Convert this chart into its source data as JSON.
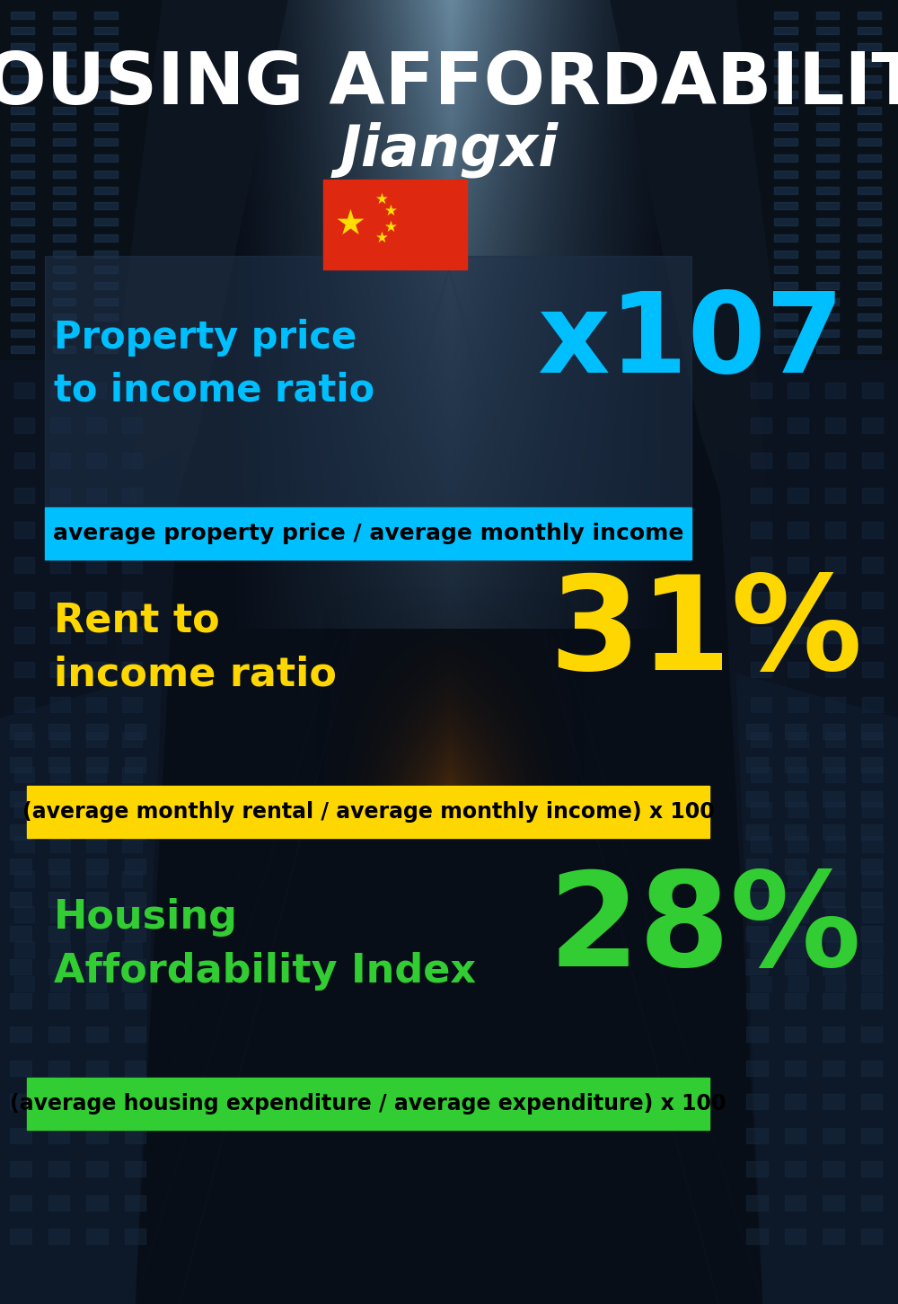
{
  "title_main": "HOUSING AFFORDABILITY",
  "title_sub": "Jiangxi",
  "section1_label": "Property price\nto income ratio",
  "section1_value": "x107",
  "section1_label_color": "#00BFFF",
  "section1_value_color": "#00BFFF",
  "section1_banner": "average property price / average monthly income",
  "section1_banner_bg": "#00BFFF",
  "section2_label": "Rent to\nincome ratio",
  "section2_value": "31%",
  "section2_label_color": "#FFD700",
  "section2_value_color": "#FFD700",
  "section2_banner": "(average monthly rental / average monthly income) x 100",
  "section2_banner_bg": "#FFD700",
  "section3_label": "Housing\nAffordability Index",
  "section3_value": "28%",
  "section3_label_color": "#32CD32",
  "section3_value_color": "#32CD32",
  "section3_banner": "(average housing expenditure / average expenditure) x 100",
  "section3_banner_bg": "#32CD32",
  "bg_color": "#080e18",
  "title_color": "#FFFFFF",
  "banner_text_color": "#000000"
}
